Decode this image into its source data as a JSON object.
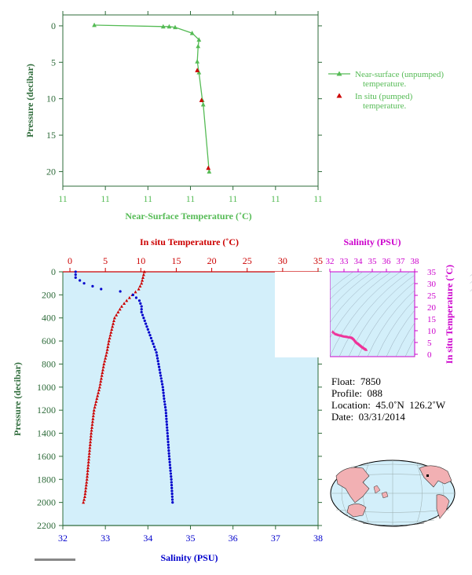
{
  "colors": {
    "green": "#55bb55",
    "dark_green": "#2e6b3a",
    "red": "#cc0000",
    "blue": "#0000cc",
    "magenta": "#cc00cc",
    "panel_bg": "#d3effa",
    "land": "#f2b0b3"
  },
  "top_chart": {
    "xlabel": "Near-Surface Temperature (˚C)",
    "ylabel": "Pressure (decibar)",
    "x_ticks": [
      "11",
      "11",
      "11",
      "11",
      "11",
      "11",
      "11"
    ],
    "y_ticks": [
      "0",
      "5",
      "10",
      "15",
      "20"
    ],
    "legend": {
      "entry1_line1": "Near-surface (unpumped)",
      "entry1_line2": "temperature.",
      "entry2_line1": "In situ (pumped)",
      "entry2_line2": "temperature."
    }
  },
  "main_chart": {
    "top_xlabel": "In situ Temperature (˚C)",
    "bottom_xlabel": "Salinity (PSU)",
    "ylabel": "Pressure (decibar)",
    "temp_ticks": [
      "0",
      "5",
      "10",
      "15",
      "20",
      "25",
      "30",
      "35"
    ],
    "sal_ticks": [
      "32",
      "33",
      "34",
      "35",
      "36",
      "37",
      "38"
    ],
    "pressure_ticks": [
      "0",
      "200",
      "400",
      "600",
      "800",
      "1000",
      "1200",
      "1400",
      "1600",
      "1800",
      "2000",
      "2200"
    ]
  },
  "ts_chart": {
    "xlabel": "Salinity (PSU)",
    "ylabel": "In situ Temperature (˚C)",
    "x_ticks": [
      "32",
      "33",
      "34",
      "35",
      "36",
      "37",
      "38"
    ],
    "y_ticks": [
      "0",
      "5",
      "10",
      "15",
      "20",
      "25",
      "30",
      "35"
    ]
  },
  "info": {
    "float_label": "Float:  7850",
    "profile_label": "Profile:  088",
    "location_label": "Location:  45.0˚N  126.2˚W",
    "date_label": "Date:  03/31/2014"
  },
  "chart_data": [
    {
      "type": "line",
      "title": "",
      "xlabel": "Near-Surface Temperature (˚C)",
      "ylabel": "Pressure (decibar)",
      "xlim": [
        10.85,
        11.15
      ],
      "ylim": [
        22,
        -1.5
      ],
      "series": [
        {
          "name": "Near-surface (unpumped) temperature.",
          "x": [
            10.887,
            10.968,
            10.975,
            10.982,
            11.002,
            11.01,
            11.009,
            11.008,
            11.01,
            11.014,
            11.015,
            11.022
          ],
          "y": [
            -0.1,
            0.1,
            0.1,
            0.2,
            1.0,
            1.9,
            2.8,
            4.9,
            6.4,
            10.2,
            10.8,
            20.0
          ]
        },
        {
          "name": "In situ (pumped) temperature.",
          "x": [
            11.008,
            11.013,
            11.021
          ],
          "y": [
            6.1,
            10.2,
            19.5
          ]
        }
      ]
    },
    {
      "type": "line",
      "title": "",
      "xlabel": "Salinity (PSU)",
      "ylabel": "Pressure (decibar)",
      "top_xlabel": "In situ Temperature (˚C)",
      "xlim_temperature": [
        -1,
        35
      ],
      "xlim_salinity": [
        32,
        38
      ],
      "ylim": [
        2200,
        0
      ],
      "series": [
        {
          "name": "In situ Temperature (˚C)",
          "x": [
            10.5,
            10.3,
            10.1,
            9.7,
            8.8,
            8.0,
            7.3,
            6.8,
            6.3,
            5.9,
            5.5,
            5.2,
            4.8,
            4.5,
            4.2,
            3.8,
            3.4,
            3.0,
            2.7,
            2.4,
            2.1,
            1.9
          ],
          "y": [
            0,
            50,
            100,
            150,
            200,
            250,
            300,
            350,
            400,
            500,
            600,
            700,
            800,
            900,
            1000,
            1100,
            1200,
            1400,
            1600,
            1800,
            1950,
            2000
          ]
        },
        {
          "name": "Salinity (PSU)",
          "x": [
            32.3,
            32.3,
            32.5,
            32.9,
            33.35,
            33.65,
            33.8,
            33.85,
            33.85,
            33.9,
            34.0,
            34.1,
            34.2,
            34.25,
            34.3,
            34.35,
            34.38,
            34.42,
            34.46,
            34.5,
            34.55,
            34.58
          ],
          "y": [
            0,
            50,
            100,
            150,
            170,
            200,
            250,
            300,
            350,
            400,
            500,
            600,
            700,
            800,
            900,
            1000,
            1100,
            1200,
            1400,
            1600,
            1800,
            2000
          ]
        }
      ]
    },
    {
      "type": "scatter",
      "title": "",
      "xlabel": "Salinity (PSU)",
      "ylabel": "In situ Temperature (˚C)",
      "xlim": [
        32,
        38
      ],
      "ylim": [
        -1,
        35
      ],
      "series": [
        {
          "name": "",
          "x": [
            32.2,
            32.4,
            32.6,
            32.8,
            33.0,
            33.2,
            33.4,
            33.55,
            33.65,
            33.75,
            33.82,
            33.9,
            34.0,
            34.1,
            34.2,
            34.3,
            34.4,
            34.5,
            34.58
          ],
          "y": [
            9.6,
            8.6,
            8.2,
            7.9,
            7.6,
            7.4,
            7.2,
            7.0,
            6.6,
            6.0,
            5.4,
            4.9,
            4.5,
            4.0,
            3.5,
            3.0,
            2.6,
            2.2,
            1.9
          ]
        }
      ]
    }
  ]
}
